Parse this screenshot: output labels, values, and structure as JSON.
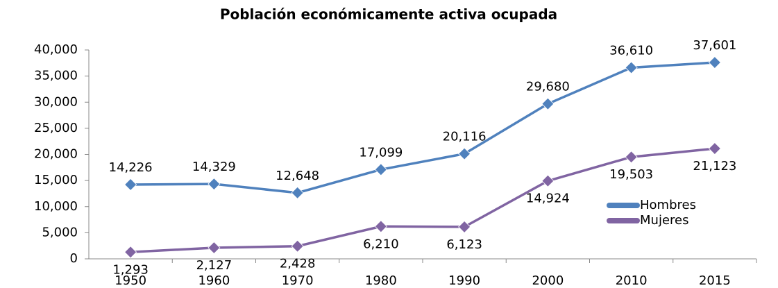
{
  "chart_data": {
    "type": "line",
    "title": "Población económicamente activa ocupada",
    "categories": [
      "1950",
      "1960",
      "1970",
      "1980",
      "1990",
      "2000",
      "2010",
      "2015"
    ],
    "series": [
      {
        "name": "Hombres",
        "color": "#4f81bd",
        "values": [
          14226,
          14329,
          12648,
          17099,
          20116,
          29680,
          36610,
          37601
        ],
        "value_labels": [
          "14,226",
          "14,329",
          "12,648",
          "17,099",
          "20,116",
          "29,680",
          "36,610",
          "37,601"
        ]
      },
      {
        "name": "Mujeres",
        "color": "#8064a2",
        "values": [
          1293,
          2127,
          2428,
          6210,
          6123,
          14924,
          19503,
          21123
        ],
        "value_labels": [
          "1,293",
          "2,127",
          "2,428",
          "6,210",
          "6,123",
          "14,924",
          "19,503",
          "21,123"
        ]
      }
    ],
    "ylim": [
      0,
      40000
    ],
    "yticks": [
      0,
      {
        "value": 5000,
        "label": "5,000"
      },
      {
        "value": 10000,
        "label": "10,000"
      },
      {
        "value": 15000,
        "label": "15,000"
      },
      {
        "value": 20000,
        "label": "20,000"
      },
      {
        "value": 25000,
        "label": "25,000"
      },
      {
        "value": 30000,
        "label": "30,000"
      },
      {
        "value": 35000,
        "label": "35,000"
      },
      {
        "value": 40000,
        "label": "40,000"
      }
    ],
    "legend": "right"
  }
}
